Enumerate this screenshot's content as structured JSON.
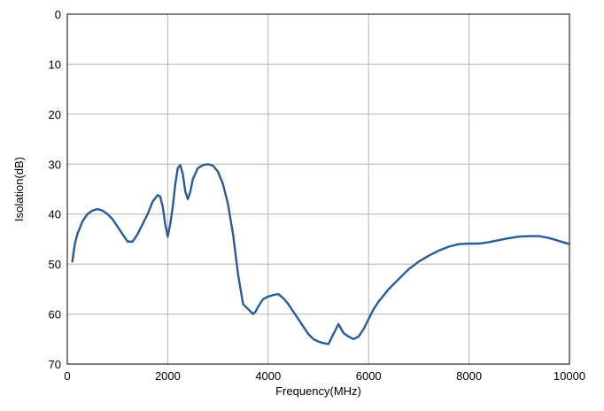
{
  "chart_data": {
    "type": "line",
    "title": "",
    "xlabel": "Frequency(MHz)",
    "ylabel": "Isolation(dB)",
    "xlim": [
      0,
      10000
    ],
    "ylim": [
      0,
      70
    ],
    "y_inverted": true,
    "grid": true,
    "x_ticks": [
      0,
      2000,
      4000,
      6000,
      8000,
      10000
    ],
    "y_ticks": [
      0,
      10,
      20,
      30,
      40,
      50,
      60,
      70
    ],
    "x_tick_labels": [
      "0",
      "2000",
      "4000",
      "6000",
      "8000",
      "10000"
    ],
    "y_tick_labels": [
      "0",
      "10",
      "20",
      "30",
      "40",
      "50",
      "60",
      "70"
    ],
    "series_color": "#2a5b9a",
    "grid_color": "#b4b4b4",
    "series": [
      {
        "x": [
          100,
          150,
          200,
          300,
          400,
          500,
          600,
          700,
          800,
          900,
          1000,
          1100,
          1200,
          1300,
          1400,
          1500,
          1600,
          1700,
          1800,
          1850,
          1900,
          1950,
          2000,
          2050,
          2100,
          2150,
          2200,
          2250,
          2300,
          2350,
          2400,
          2450,
          2500,
          2600,
          2700,
          2800,
          2900,
          3000,
          3100,
          3200,
          3300,
          3400,
          3500,
          3600,
          3700,
          3750,
          3800,
          3900,
          4000,
          4100,
          4200,
          4300,
          4400,
          4500,
          4600,
          4700,
          4800,
          4900,
          5000,
          5100,
          5200,
          5300,
          5400,
          5500,
          5600,
          5700,
          5800,
          5900,
          6000,
          6100,
          6200,
          6400,
          6600,
          6800,
          7000,
          7200,
          7400,
          7600,
          7800,
          8000,
          8200,
          8400,
          8600,
          8800,
          9000,
          9200,
          9400,
          9600,
          9800,
          10000
        ],
        "y": [
          49.5,
          46,
          44,
          41.5,
          40,
          39.3,
          39,
          39.3,
          40,
          41,
          42.5,
          44,
          45.5,
          45.5,
          44,
          42,
          40,
          37.5,
          36.2,
          36.5,
          38.5,
          42,
          44.5,
          42,
          38.5,
          34,
          30.8,
          30.2,
          32,
          35.5,
          37,
          35.5,
          33,
          30.8,
          30.2,
          30,
          30.3,
          31.5,
          34,
          38,
          44,
          52,
          58,
          59,
          60,
          59.5,
          58.5,
          57,
          56.5,
          56.2,
          56,
          56.8,
          58,
          59.5,
          61,
          62.5,
          64,
          65,
          65.5,
          65.8,
          66,
          64,
          62,
          63.8,
          64.5,
          65,
          64.5,
          63,
          61,
          59,
          57.5,
          55,
          53,
          51,
          49.5,
          48.3,
          47.3,
          46.5,
          46,
          45.9,
          45.9,
          45.6,
          45.2,
          44.8,
          44.5,
          44.4,
          44.4,
          44.8,
          45.4,
          46
        ]
      }
    ]
  }
}
